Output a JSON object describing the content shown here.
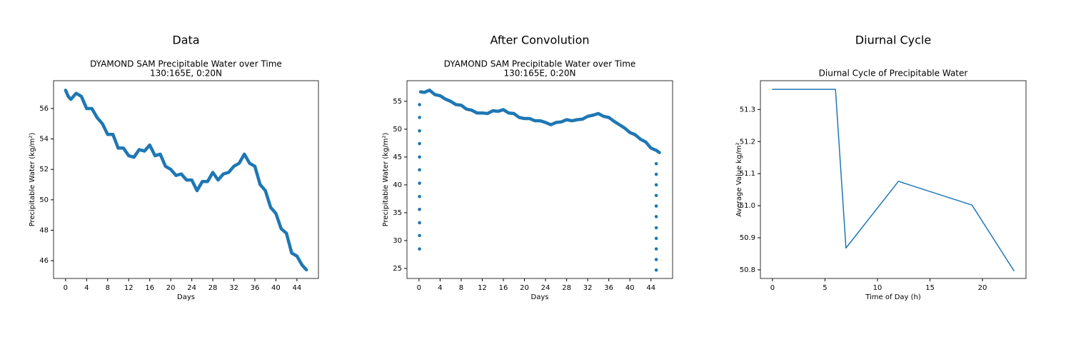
{
  "chart_data": [
    {
      "type": "line",
      "figure_title": "Data",
      "title": "DYAMOND SAM Precipitable Water over Time",
      "subtitle": "130:165E, 0:20N",
      "x_label": "Days",
      "y_label": "Precipitable Water (kg/m²)",
      "xlim": [
        -2.29,
        48.09
      ],
      "ylim": [
        44.83,
        57.83
      ],
      "xticks": [
        0,
        4,
        8,
        12,
        16,
        20,
        24,
        28,
        32,
        36,
        40,
        44
      ],
      "yticks": [
        46,
        48,
        50,
        52,
        54,
        56
      ],
      "series": [
        {
          "mode": "line",
          "color": "#1f77b4",
          "x": [
            0,
            0.5,
            1,
            2,
            3,
            4,
            5,
            6,
            7,
            8,
            9,
            10,
            11,
            12,
            13,
            14,
            15,
            16,
            17,
            18,
            19,
            20,
            21,
            22,
            23,
            24,
            25,
            26,
            27,
            28,
            29,
            30,
            31,
            32,
            33,
            34,
            35,
            36,
            37,
            38,
            39,
            40,
            41,
            42,
            43,
            44,
            45,
            45.8
          ],
          "values": [
            57.2,
            56.8,
            56.6,
            57.0,
            56.8,
            56.0,
            56.0,
            55.4,
            55.0,
            54.3,
            54.3,
            53.4,
            53.4,
            52.9,
            52.8,
            53.3,
            53.2,
            53.6,
            52.9,
            53.0,
            52.2,
            52.0,
            51.6,
            51.7,
            51.3,
            51.3,
            50.6,
            51.2,
            51.2,
            51.8,
            51.3,
            51.7,
            51.8,
            52.2,
            52.4,
            53.0,
            52.4,
            52.2,
            51.0,
            50.6,
            49.5,
            49.1,
            48.1,
            47.8,
            46.5,
            46.3,
            45.7,
            45.4
          ]
        }
      ]
    },
    {
      "type": "line",
      "figure_title": "After Convolution",
      "title": "DYAMOND SAM Precipitable Water over Time",
      "subtitle": "130:165E, 0:20N",
      "x_label": "Days",
      "y_label": "Precipitable Water (kg/m²)",
      "xlim": [
        -2.28,
        48.1
      ],
      "ylim": [
        23.2,
        58.7
      ],
      "xticks": [
        0,
        4,
        8,
        12,
        16,
        20,
        24,
        28,
        32,
        36,
        40,
        44
      ],
      "yticks": [
        25,
        30,
        35,
        40,
        45,
        50,
        55
      ],
      "series": [
        {
          "mode": "markers",
          "color": "#1f77b4",
          "x": [
            0.1,
            0.1,
            0.1,
            0.1,
            0.1,
            0.1,
            0.1,
            0.1,
            0.1,
            0.1,
            0.1,
            0.1
          ],
          "values": [
            28.5,
            30.9,
            33.2,
            35.6,
            37.9,
            40.3,
            42.7,
            45.0,
            47.4,
            49.7,
            52.1,
            54.4
          ]
        },
        {
          "mode": "line",
          "color": "#1f77b4",
          "x": [
            0.3,
            1,
            2,
            3,
            4,
            5,
            6,
            7,
            8,
            9,
            10,
            11,
            12,
            13,
            14,
            15,
            16,
            17,
            18,
            19,
            20,
            21,
            22,
            23,
            24,
            25,
            26,
            27,
            28,
            29,
            30,
            31,
            32,
            33,
            34,
            35,
            36,
            37,
            38,
            39,
            40,
            41,
            42,
            43,
            44,
            45,
            45.6
          ],
          "values": [
            56.7,
            56.6,
            57.0,
            56.2,
            56.0,
            55.4,
            55.0,
            54.4,
            54.3,
            53.6,
            53.4,
            52.9,
            52.9,
            52.8,
            53.3,
            53.2,
            53.5,
            52.9,
            52.8,
            52.1,
            51.9,
            51.9,
            51.5,
            51.5,
            51.2,
            50.8,
            51.2,
            51.3,
            51.7,
            51.5,
            51.7,
            51.8,
            52.3,
            52.5,
            52.8,
            52.3,
            52.1,
            51.4,
            50.8,
            50.2,
            49.4,
            49.0,
            48.2,
            47.7,
            46.6,
            46.2,
            45.8
          ]
        },
        {
          "mode": "markers",
          "color": "#1f77b4",
          "x": [
            45,
            45,
            45,
            45,
            45,
            45,
            45,
            45,
            45,
            45,
            45
          ],
          "values": [
            43.8,
            41.9,
            40.0,
            38.1,
            36.2,
            34.3,
            32.3,
            30.4,
            28.5,
            26.6,
            24.7
          ]
        }
      ]
    },
    {
      "type": "line",
      "figure_title": "Diurnal Cycle",
      "title": "Diurnal Cycle of Precipitable Water",
      "x_label": "Time of Day (h)",
      "y_label": "Average Value kg/m²",
      "xlim": [
        -1.15,
        24.15
      ],
      "ylim": [
        50.773,
        51.39
      ],
      "xticks": [
        0,
        5,
        10,
        15,
        20
      ],
      "yticks": [
        50.8,
        50.9,
        {
          "value": 51,
          "label": "51.0"
        },
        51.1,
        51.2,
        51.3
      ],
      "series": [
        {
          "mode": "line",
          "color": "#1f77b4",
          "x": [
            0,
            6,
            7,
            12,
            19,
            23
          ],
          "values": [
            51.363,
            51.363,
            50.868,
            51.076,
            51.002,
            50.797
          ]
        }
      ]
    }
  ]
}
